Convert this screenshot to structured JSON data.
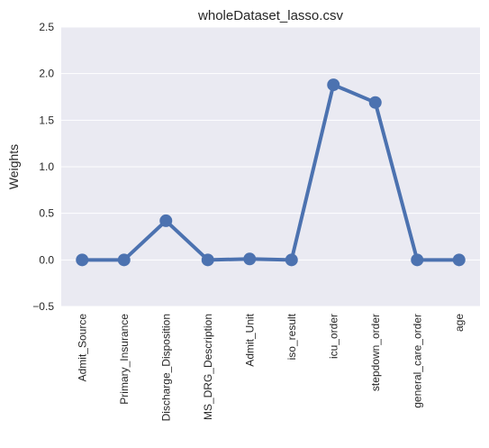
{
  "chart_data": {
    "type": "line",
    "title": "wholeDataset_lasso.csv",
    "xlabel": "",
    "ylabel": "Weights",
    "ylim": [
      -0.5,
      2.5
    ],
    "yticks": [
      -0.5,
      0.0,
      0.5,
      1.0,
      1.5,
      2.0,
      2.5
    ],
    "ytick_labels": [
      "−0.5",
      "0.0",
      "0.5",
      "1.0",
      "1.5",
      "2.0",
      "2.5"
    ],
    "categories": [
      "Admit_Source",
      "Primary_Insurance",
      "Discharge_Disposition",
      "MS_DRG_Description",
      "Admit_Unit",
      "iso_result",
      "icu_order",
      "stepdown_order",
      "general_care_order",
      "age"
    ],
    "values": [
      0.0,
      0.0,
      0.42,
      0.0,
      0.01,
      0.0,
      1.88,
      1.69,
      0.0,
      0.0
    ],
    "grid": true,
    "style": "seaborn-darkgrid point plot",
    "colors": {
      "background": "#EAEAF2",
      "grid": "#FFFFFF",
      "series": "#4C72B0"
    }
  }
}
